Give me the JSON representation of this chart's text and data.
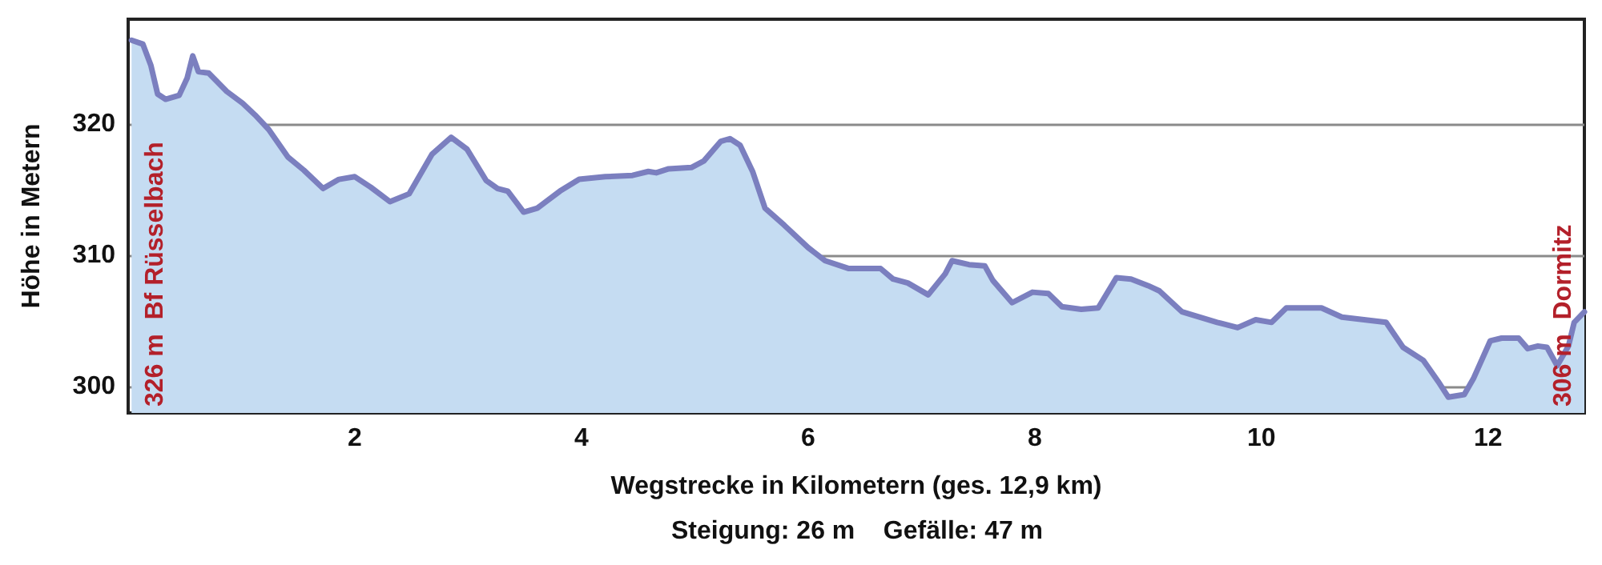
{
  "chart_data": {
    "type": "area",
    "xlabel": "Wegstrecke in Kilometern (ges. 12,9 km)",
    "ylabel": "Höhe in Metern",
    "annotations": [
      "326 m  Bf Rüsselbach",
      "306 m  Dormitz",
      "Steigung: 26 m    Gefälle: 47 m"
    ],
    "xlim": [
      0,
      12.85
    ],
    "ylim": [
      298,
      328
    ],
    "xticks": [
      2,
      4,
      6,
      8,
      10,
      12
    ],
    "yticks": [
      300,
      310,
      320
    ],
    "grid": "y",
    "marker": "none",
    "line_style": "solid",
    "series": [
      {
        "color": "#7b7fbf",
        "x": [
          0.03,
          0.13,
          0.2,
          0.26,
          0.33,
          0.45,
          0.52,
          0.57,
          0.62,
          0.71,
          0.87,
          1.01,
          1.12,
          1.24,
          1.41,
          1.55,
          1.72,
          1.86,
          2.0,
          2.14,
          2.31,
          2.48,
          2.68,
          2.85,
          2.99,
          3.16,
          3.26,
          3.35,
          3.49,
          3.61,
          3.81,
          3.98,
          4.21,
          4.45,
          4.59,
          4.66,
          4.77,
          4.97,
          5.08,
          5.23,
          5.31,
          5.4,
          5.51,
          5.62,
          5.79,
          6.0,
          6.15,
          6.36,
          6.64,
          6.75,
          6.88,
          7.06,
          7.21,
          7.27,
          7.42,
          7.56,
          7.63,
          7.8,
          7.98,
          8.12,
          8.24,
          8.41,
          8.56,
          8.72,
          8.85,
          9.0,
          9.1,
          9.3,
          9.61,
          9.79,
          9.95,
          10.09,
          10.22,
          10.53,
          10.71,
          11.1,
          11.25,
          11.43,
          11.56,
          11.65,
          11.79,
          11.87,
          12.02,
          12.12,
          12.27,
          12.35,
          12.44,
          12.52,
          12.61,
          12.71,
          12.76,
          12.85
        ],
        "values": [
          326.4,
          326.1,
          324.5,
          322.3,
          321.9,
          322.2,
          323.5,
          325.2,
          324.0,
          323.9,
          322.5,
          321.6,
          320.7,
          319.6,
          317.5,
          316.5,
          315.1,
          315.8,
          316.0,
          315.2,
          314.1,
          314.7,
          317.7,
          319.0,
          318.1,
          315.7,
          315.1,
          314.9,
          313.3,
          313.6,
          314.9,
          315.8,
          316.0,
          316.1,
          316.4,
          316.3,
          316.6,
          316.7,
          317.2,
          318.7,
          318.9,
          318.4,
          316.4,
          313.6,
          312.3,
          310.6,
          309.6,
          309.0,
          309.0,
          308.2,
          307.9,
          307.0,
          308.6,
          309.6,
          309.3,
          309.2,
          308.1,
          306.4,
          307.2,
          307.1,
          306.1,
          305.9,
          306.0,
          308.3,
          308.2,
          307.7,
          307.3,
          305.7,
          304.9,
          304.5,
          305.1,
          304.9,
          306.0,
          306.0,
          305.3,
          304.9,
          303.0,
          302.0,
          300.4,
          299.2,
          299.4,
          300.6,
          303.5,
          303.7,
          303.7,
          302.9,
          303.1,
          303.0,
          301.6,
          303.1,
          304.9,
          305.7
        ]
      }
    ]
  }
}
